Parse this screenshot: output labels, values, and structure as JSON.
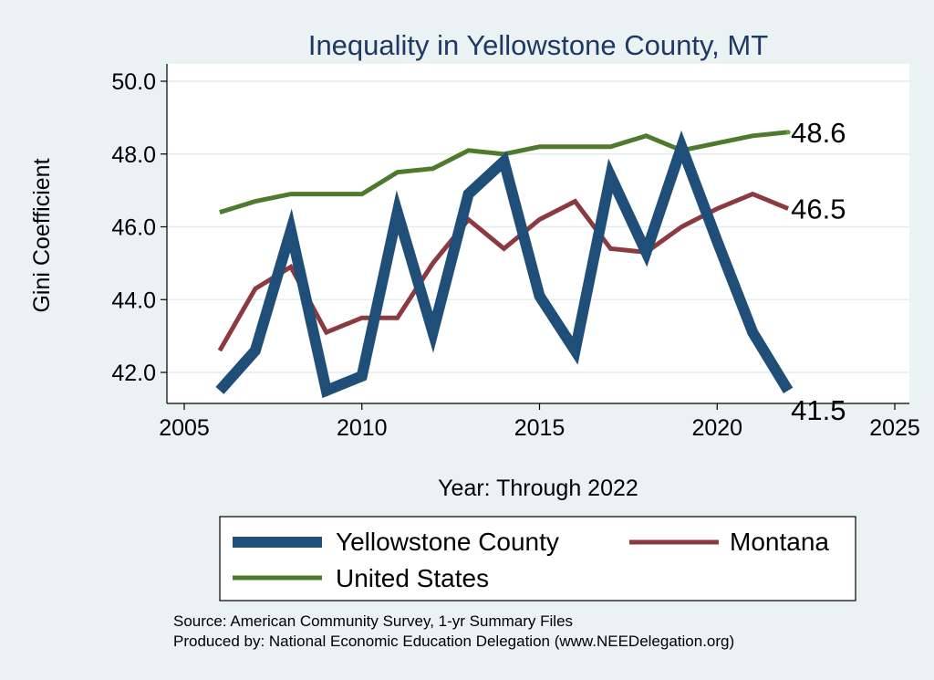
{
  "chart_data": {
    "type": "line",
    "title": "Inequality in Yellowstone County, MT",
    "xlabel": "Year: Through 2022",
    "ylabel": "Gini Coefficient",
    "xlim": [
      2005,
      2025
    ],
    "ylim": [
      41,
      50.5
    ],
    "xticks": [
      2005,
      2010,
      2015,
      2020,
      2025
    ],
    "yticks": [
      42.0,
      44.0,
      46.0,
      48.0,
      50.0
    ],
    "grid": true,
    "legend_position": "bottom",
    "x": [
      2006,
      2007,
      2008,
      2009,
      2010,
      2011,
      2012,
      2013,
      2014,
      2015,
      2016,
      2017,
      2018,
      2019,
      2020,
      2021,
      2022
    ],
    "series": [
      {
        "name": "Yellowstone County",
        "color": "#1f4e79",
        "values": [
          41.5,
          42.6,
          45.9,
          41.5,
          41.9,
          46.4,
          43.1,
          46.9,
          47.8,
          44.1,
          42.6,
          47.4,
          45.3,
          48.2,
          45.6,
          43.1,
          41.5
        ],
        "end_label": "41.5"
      },
      {
        "name": "Montana",
        "color": "#8b3a3f",
        "values": [
          42.6,
          44.3,
          44.9,
          43.1,
          43.5,
          43.5,
          45.0,
          46.2,
          45.4,
          46.2,
          46.7,
          45.4,
          45.3,
          46.0,
          46.5,
          46.9,
          46.5
        ],
        "end_label": "46.5"
      },
      {
        "name": "United States",
        "color": "#4e7a2e",
        "values": [
          46.4,
          46.7,
          46.9,
          46.9,
          46.9,
          47.5,
          47.6,
          48.1,
          48.0,
          48.2,
          48.2,
          48.2,
          48.5,
          48.1,
          48.3,
          48.5,
          48.6
        ],
        "end_label": "48.6"
      }
    ]
  },
  "footer": {
    "source": "Source: American Community Survey, 1-yr Summary Files",
    "produced_by": "Produced by: National Economic Education Delegation (www.NEEDelegation.org)"
  }
}
